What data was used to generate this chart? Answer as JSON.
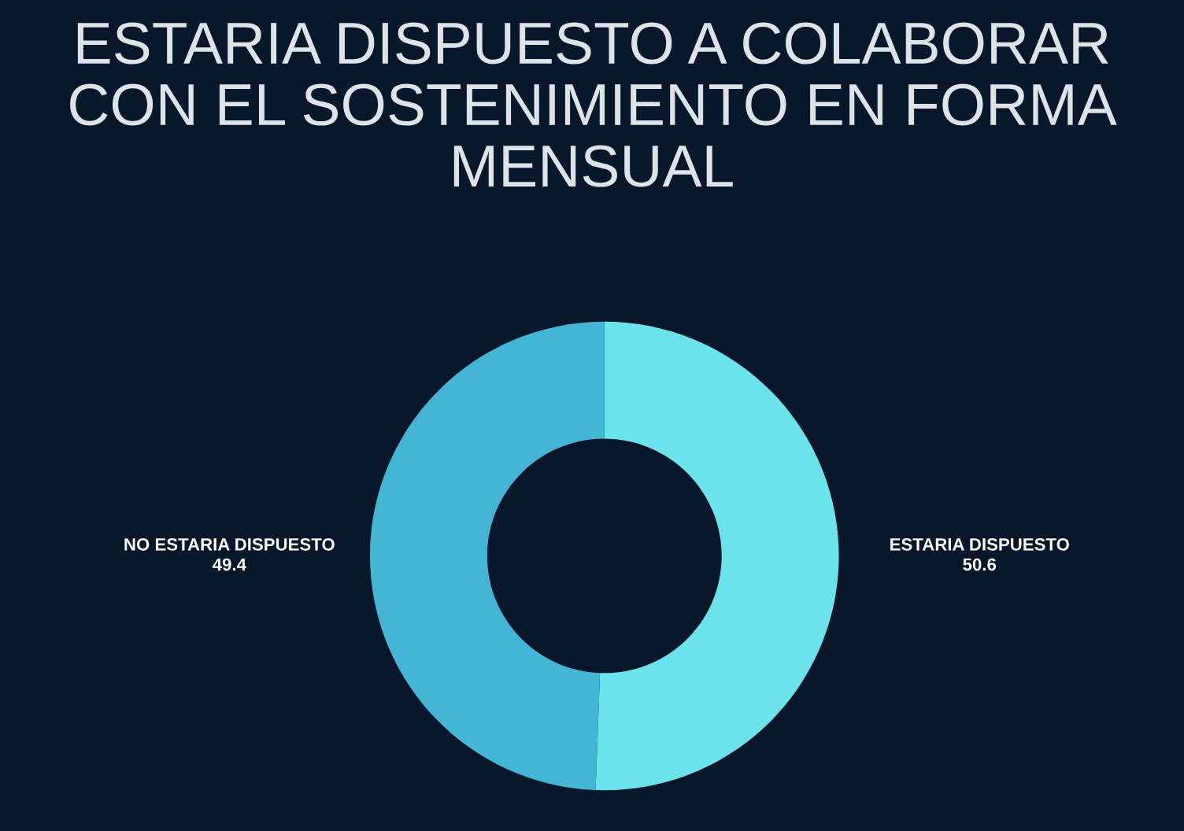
{
  "chart_data": {
    "type": "donut",
    "title": "ESTARIA DISPUESTO A COLABORAR CON EL SOSTENIMIENTO EN FORMA MENSUAL",
    "categories": [
      "ESTARIA DISPUESTO",
      "NO ESTARIA DISPUESTO"
    ],
    "values": [
      50.6,
      49.4
    ],
    "colors": [
      "#6ae4ea",
      "#45b5d5"
    ],
    "data_labels": true,
    "legend": false
  }
}
